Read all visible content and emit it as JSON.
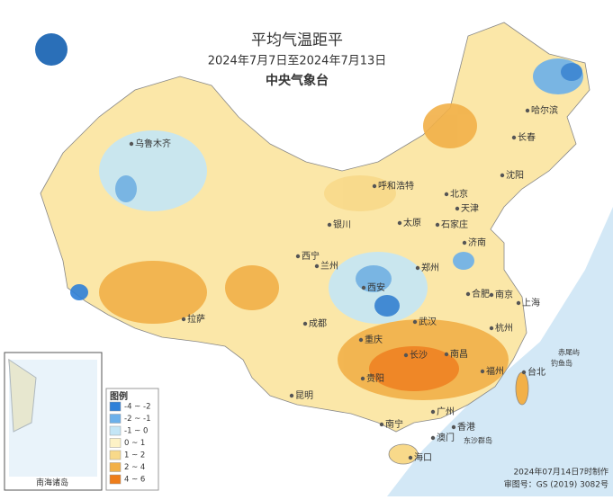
{
  "header": {
    "title": "平均气温距平",
    "subtitle": "2024年7月7日至2024年7月13日",
    "agency": "中央气象台"
  },
  "cities": [
    "哈尔滨",
    "长春",
    "沈阳",
    "乌鲁木齐",
    "呼和浩特",
    "北京",
    "天津",
    "石家庄",
    "太原",
    "银川",
    "西宁",
    "兰州",
    "济南",
    "郑州",
    "西安",
    "合肥",
    "南京",
    "上海",
    "武汉",
    "杭州",
    "成都",
    "重庆",
    "长沙",
    "南昌",
    "福州",
    "台北",
    "拉萨",
    "贵阳",
    "昆明",
    "南宁",
    "广州",
    "香港",
    "澳门",
    "海口"
  ],
  "islands": [
    "赤尾屿",
    "钓鱼岛",
    "东沙群岛"
  ],
  "inset": {
    "label": "南海诸岛"
  },
  "legend": {
    "title": "图例",
    "items": [
      {
        "label": "-4 ~ -2",
        "color": "#2f80d8"
      },
      {
        "label": "-2 ~ -1",
        "color": "#6cb0ea"
      },
      {
        "label": "-1 ~ 0",
        "color": "#c4e6f6"
      },
      {
        "label": "0 ~ 1",
        "color": "#fdf2c6"
      },
      {
        "label": "1 ~ 2",
        "color": "#f8d98a"
      },
      {
        "label": "2 ~ 4",
        "color": "#f2b048"
      },
      {
        "label": "4 ~ 6",
        "color": "#ee7d1a"
      }
    ]
  },
  "footer": {
    "made": "2024年07月14日7时制作",
    "approval": "审图号：GS (2019) 3082号"
  }
}
